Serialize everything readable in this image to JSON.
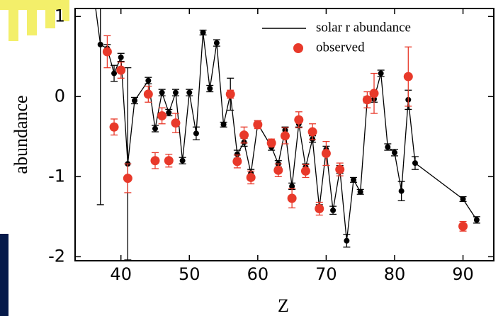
{
  "chart_data": {
    "type": "scatter",
    "xlabel": "Z",
    "ylabel": "abundance",
    "xlim": [
      33.3,
      94.5
    ],
    "ylim": [
      -2.05,
      1.1
    ],
    "xticks": [
      40,
      50,
      60,
      70,
      80,
      90
    ],
    "yticks": [
      -2,
      -1,
      0,
      1
    ],
    "series": [
      {
        "name": "solar r abundance",
        "color": "#000000",
        "style": "line",
        "x": [
          36,
          37,
          38,
          39,
          40,
          41,
          42,
          44,
          45,
          46,
          47,
          48,
          49,
          50,
          51,
          52,
          53,
          54,
          55,
          56,
          57,
          58,
          59,
          60,
          62,
          63,
          64,
          65,
          66,
          67,
          68,
          69,
          70,
          71,
          72,
          73,
          74,
          75,
          76,
          77,
          78,
          79,
          80,
          81,
          82,
          83,
          90,
          92
        ],
        "values": [
          1.3,
          0.65,
          0.6,
          0.29,
          0.49,
          -0.84,
          -0.05,
          0.2,
          -0.4,
          0.05,
          -0.2,
          0.05,
          -0.8,
          0.05,
          -0.46,
          0.8,
          0.1,
          0.67,
          -0.35,
          0.03,
          -0.72,
          -0.57,
          -0.96,
          -0.34,
          -0.63,
          -0.84,
          -0.42,
          -1.12,
          -0.34,
          -0.88,
          -0.53,
          -1.39,
          -0.66,
          -1.42,
          -0.91,
          -1.8,
          -1.04,
          -1.19,
          -0.04,
          -0.03,
          0.29,
          -0.63,
          -0.7,
          -1.18,
          -0.04,
          -0.83,
          -1.28,
          -1.54
        ],
        "errors": [
          null,
          2.0,
          0.05,
          0.1,
          0.05,
          1.2,
          0.04,
          0.04,
          0.04,
          0.04,
          0.04,
          0.04,
          0.04,
          0.04,
          0.08,
          0.03,
          0.04,
          0.04,
          0.03,
          0.2,
          0.05,
          0.05,
          0.05,
          0.04,
          0.04,
          0.04,
          0.04,
          0.04,
          0.04,
          0.04,
          0.04,
          0.04,
          0.04,
          0.05,
          0.05,
          0.08,
          0.03,
          0.03,
          0.04,
          0.04,
          0.04,
          0.04,
          0.04,
          0.12,
          0.12,
          0.08,
          0.03,
          0.04
        ]
      },
      {
        "name": "observed",
        "color": "#e8392a",
        "style": "marker",
        "x": [
          38,
          39,
          40,
          41,
          44,
          45,
          46,
          47,
          48,
          56,
          57,
          58,
          59,
          60,
          62,
          63,
          64,
          65,
          66,
          67,
          68,
          69,
          70,
          72,
          76,
          77,
          82,
          90
        ],
        "values": [
          0.56,
          -0.38,
          0.33,
          -1.02,
          0.03,
          -0.8,
          -0.24,
          -0.8,
          -0.33,
          0.03,
          -0.81,
          -0.48,
          -1.01,
          -0.35,
          -0.58,
          -0.92,
          -0.49,
          -1.27,
          -0.29,
          -0.93,
          -0.44,
          -1.4,
          -0.71,
          -0.91,
          -0.04,
          0.04,
          0.25,
          -1.62
        ],
        "errors": [
          0.2,
          0.1,
          0.1,
          0.18,
          0.1,
          0.1,
          0.1,
          0.08,
          0.12,
          0.05,
          0.08,
          0.1,
          0.08,
          0.05,
          0.05,
          0.08,
          0.1,
          0.12,
          0.1,
          0.08,
          0.1,
          0.08,
          0.15,
          0.08,
          0.1,
          0.25,
          0.37,
          0.06
        ]
      }
    ]
  }
}
